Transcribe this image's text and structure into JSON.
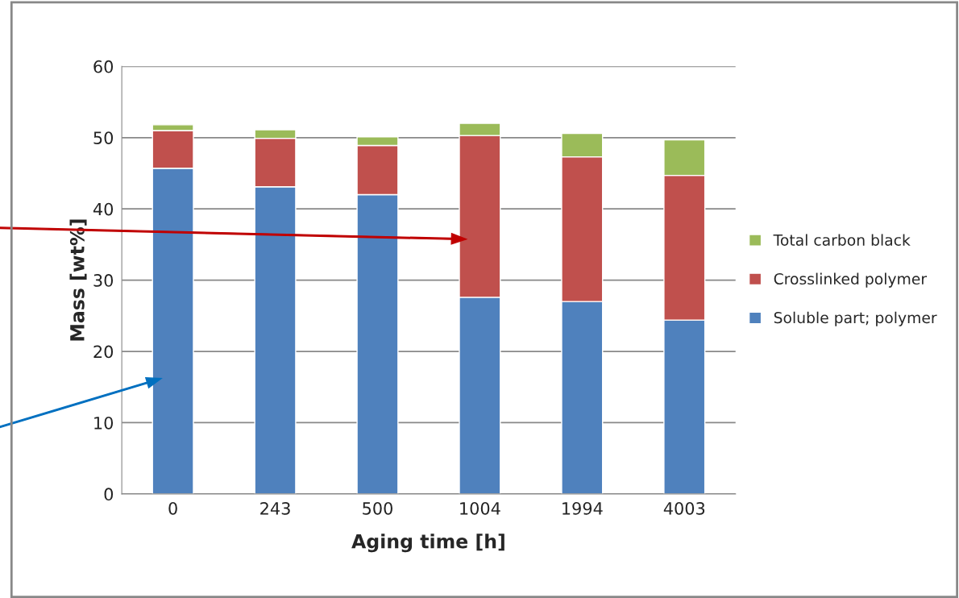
{
  "chart_data": {
    "type": "bar",
    "stacked": true,
    "xlabel": "Aging time [h]",
    "ylabel": "Mass [wt%]",
    "categories": [
      "0",
      "243",
      "500",
      "1004",
      "1994",
      "4003"
    ],
    "series": [
      {
        "name": "Soluble part; polymer",
        "color": "#4f81bd",
        "values": [
          45.7,
          43.1,
          42.0,
          27.6,
          27.0,
          24.4
        ]
      },
      {
        "name": "Crosslinked polymer",
        "color": "#c0504d",
        "values": [
          5.3,
          6.8,
          6.9,
          22.7,
          20.3,
          20.3
        ]
      },
      {
        "name": "Total carbon black",
        "color": "#9bbb59",
        "values": [
          0.8,
          1.2,
          1.2,
          1.7,
          3.3,
          5.0
        ]
      }
    ],
    "ylim": [
      0,
      60
    ],
    "yticks": [
      0,
      10,
      20,
      30,
      40,
      50,
      60
    ],
    "grid": "y",
    "legend": "right"
  }
}
